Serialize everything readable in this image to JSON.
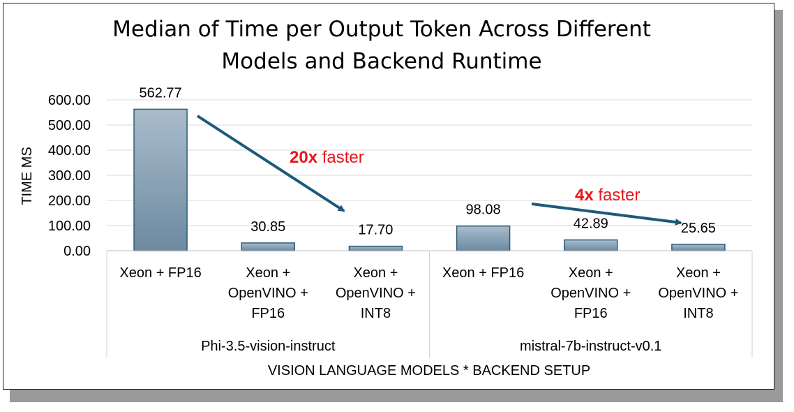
{
  "chart_data": {
    "type": "bar",
    "title": [
      "Median of Time per Output Token Across Different",
      "Models and Backend Runtime"
    ],
    "ylabel": "TIME MS",
    "xlabel": "VISION LANGUAGE MODELS * BACKEND SETUP",
    "ylim": [
      0,
      600
    ],
    "yticks": [
      "0.00",
      "100.00",
      "200.00",
      "300.00",
      "400.00",
      "500.00",
      "600.00"
    ],
    "grid": true,
    "bar_color": "#7f98ad",
    "bar_border_color": "#2e5b78",
    "groups": [
      {
        "name": "Phi-3.5-vision-instruct",
        "categories": [
          [
            "Xeon + FP16"
          ],
          [
            "Xeon +",
            "OpenVINO +",
            "FP16"
          ],
          [
            "Xeon +",
            "OpenVINO +",
            "INT8"
          ]
        ],
        "values": [
          562.77,
          30.85,
          17.7
        ],
        "labels": [
          "562.77",
          "30.85",
          "17.70"
        ]
      },
      {
        "name": "mistral-7b-instruct-v0.1",
        "categories": [
          [
            "Xeon + FP16"
          ],
          [
            "Xeon +",
            "OpenVINO +",
            "FP16"
          ],
          [
            "Xeon +",
            "OpenVINO +",
            "INT8"
          ]
        ],
        "values": [
          98.08,
          42.89,
          25.65
        ],
        "labels": [
          "98.08",
          "42.89",
          "25.65"
        ]
      }
    ],
    "annotations": [
      {
        "bold": "20x",
        "text": " faster",
        "color": "#e8151b"
      },
      {
        "bold": "4x",
        "text": " faster",
        "color": "#e8151b"
      }
    ],
    "arrow_color": "#1c5a7a"
  }
}
